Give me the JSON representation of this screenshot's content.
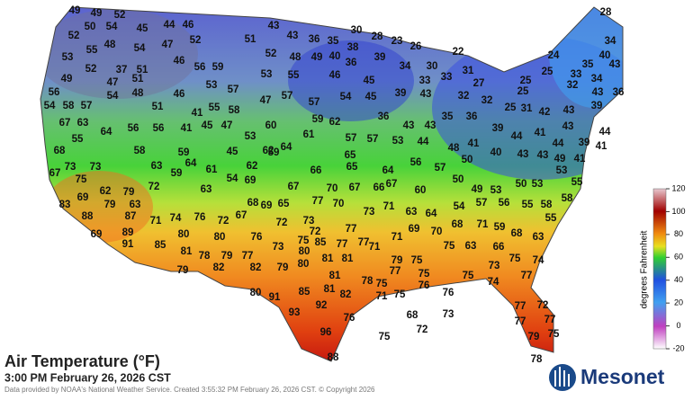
{
  "title": "Air Temperature (°F)",
  "timestamp": "3:00 PM February 26, 2026 CST",
  "credit": "Data provided by NOAA's National Weather Service. Created 3:55:32 PM February 26, 2026 CST. © Copyright 2026",
  "logo": "Mesonet",
  "colorbar": {
    "label": "degrees Fahrenheit",
    "lim": [
      -20,
      120
    ],
    "ticks": [
      120,
      100,
      80,
      60,
      40,
      20,
      0,
      -20
    ]
  },
  "stations": [
    49,
    49,
    52,
    50,
    54,
    45,
    44,
    46,
    52,
    48,
    54,
    47,
    52,
    51,
    43,
    43,
    36,
    35,
    38,
    30,
    28,
    23,
    26,
    53,
    55,
    49,
    52,
    37,
    51,
    46,
    56,
    59,
    52,
    48,
    49,
    40,
    39,
    34,
    30,
    31,
    22,
    33,
    27,
    32,
    32,
    47,
    51,
    56,
    53,
    57,
    53,
    55,
    46,
    36,
    45,
    39,
    33,
    43,
    25,
    25,
    25,
    24,
    33,
    34,
    35,
    43,
    34,
    28,
    40,
    36,
    43,
    39,
    32,
    54,
    58,
    57,
    54,
    48,
    51,
    46,
    41,
    55,
    58,
    47,
    57,
    57,
    54,
    45,
    67,
    63,
    55,
    64,
    56,
    56,
    41,
    45,
    47,
    60,
    59,
    62,
    36,
    43,
    43,
    35,
    36,
    25,
    31,
    42,
    43,
    43,
    44,
    39,
    41,
    68,
    58,
    59,
    45,
    53,
    62,
    64,
    61,
    57,
    57,
    53,
    44,
    48,
    41,
    39,
    44,
    41,
    44,
    49,
    41,
    67,
    73,
    73,
    63,
    64,
    61,
    62,
    59,
    66,
    65,
    65,
    64,
    56,
    57,
    50,
    40,
    43,
    43,
    53,
    75,
    69,
    62,
    79,
    72,
    59,
    63,
    54,
    69,
    67,
    70,
    67,
    66,
    67,
    60,
    50,
    49,
    53,
    50,
    53,
    55,
    58,
    83,
    88,
    79,
    63,
    87,
    71,
    74,
    76,
    72,
    67,
    68,
    69,
    65,
    77,
    70,
    73,
    71,
    63,
    64,
    54,
    57,
    56,
    55,
    58,
    55,
    69,
    89,
    91,
    85,
    80,
    80,
    76,
    72,
    73,
    72,
    75,
    85,
    77,
    77,
    77,
    71,
    69,
    70,
    68,
    71,
    59,
    68,
    63,
    81,
    78,
    79,
    77,
    73,
    80,
    81,
    81,
    71,
    79,
    75,
    75,
    63,
    66,
    75,
    74,
    79,
    82,
    82,
    79,
    80,
    81,
    78,
    75,
    77,
    75,
    75,
    73,
    77,
    74,
    80,
    91,
    85,
    81,
    82,
    71,
    75,
    76,
    76,
    77,
    72,
    93,
    92,
    76,
    68,
    73,
    72,
    77,
    77,
    96,
    75,
    79,
    75,
    88,
    78
  ]
}
